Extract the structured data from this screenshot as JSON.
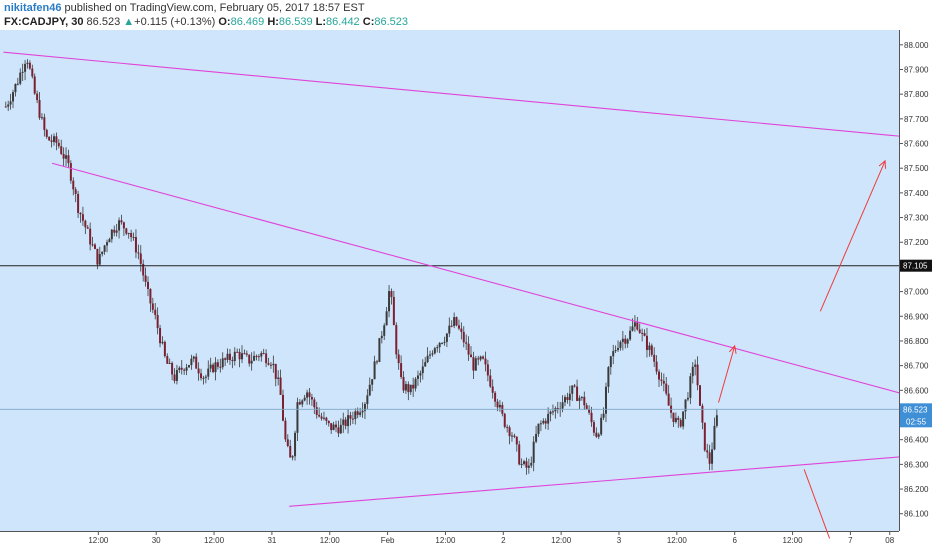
{
  "header": {
    "author": "nikitafen46",
    "publish_text": "published on TradingView.com, February 05, 2017 18:57 EST",
    "symbol": "FX:CADJPY, 30",
    "price": "86.523",
    "arrow": "▲",
    "change": "+0.115 (+0.13%)",
    "o_label": "O:",
    "o_value": "86.469",
    "h_label": "H:",
    "h_value": "86.539",
    "l_label": "L:",
    "l_value": "86.442",
    "c_label": "C:",
    "c_value": "86.523"
  },
  "colors": {
    "background": "#cfe5fb",
    "trendline": "#e044d8",
    "arrow": "#ef3b3b",
    "candle": "#3a3a3a",
    "down_candle": "#7a2030"
  },
  "chart_data": {
    "type": "candlestick",
    "symbol": "FX:CADJPY",
    "interval": "30",
    "y_ticks": [
      "86.100",
      "86.200",
      "86.300",
      "86.400",
      "86.500",
      "86.600",
      "86.700",
      "86.800",
      "86.900",
      "87.000",
      "87.100",
      "87.200",
      "87.300",
      "87.400",
      "87.500",
      "87.600",
      "87.700",
      "87.800",
      "87.900",
      "88.000"
    ],
    "x_ticks": [
      {
        "label": "12:00",
        "t": 0.5
      },
      {
        "label": "30",
        "t": 1.0
      },
      {
        "label": "12:00",
        "t": 1.5
      },
      {
        "label": "31",
        "t": 2.0
      },
      {
        "label": "12:00",
        "t": 2.5
      },
      {
        "label": "Feb",
        "t": 3.0
      },
      {
        "label": "12:00",
        "t": 3.5
      },
      {
        "label": "2",
        "t": 4.0
      },
      {
        "label": "12:00",
        "t": 4.5
      },
      {
        "label": "3",
        "t": 5.0
      },
      {
        "label": "12:00",
        "t": 5.5
      },
      {
        "label": "6",
        "t": 6.0
      },
      {
        "label": "12:00",
        "t": 6.5
      },
      {
        "label": "7",
        "t": 7.0
      },
      {
        "label": "08",
        "t": 7.34
      }
    ],
    "x_range": [
      -0.35,
      7.42
    ],
    "y_range": [
      86.03,
      88.06
    ],
    "price_line": {
      "value": 86.523,
      "label": "86.523"
    },
    "countdown": "02:55",
    "horizontal_level": {
      "value": 87.105,
      "label": "87.105"
    },
    "price_path": [
      [
        -0.3,
        87.75
      ],
      [
        -0.2,
        87.85
      ],
      [
        -0.12,
        87.96
      ],
      [
        -0.05,
        87.8
      ],
      [
        0.05,
        87.62
      ],
      [
        0.15,
        87.6
      ],
      [
        0.25,
        87.5
      ],
      [
        0.32,
        87.35
      ],
      [
        0.42,
        87.22
      ],
      [
        0.5,
        87.12
      ],
      [
        0.58,
        87.22
      ],
      [
        0.67,
        87.28
      ],
      [
        0.76,
        87.25
      ],
      [
        0.85,
        87.15
      ],
      [
        0.92,
        87.0
      ],
      [
        1.0,
        86.88
      ],
      [
        1.08,
        86.72
      ],
      [
        1.16,
        86.65
      ],
      [
        1.24,
        86.7
      ],
      [
        1.32,
        86.72
      ],
      [
        1.42,
        86.65
      ],
      [
        1.5,
        86.7
      ],
      [
        1.6,
        86.72
      ],
      [
        1.7,
        86.75
      ],
      [
        1.8,
        86.72
      ],
      [
        1.9,
        86.75
      ],
      [
        2.0,
        86.72
      ],
      [
        2.07,
        86.6
      ],
      [
        2.12,
        86.38
      ],
      [
        2.17,
        86.3
      ],
      [
        2.22,
        86.55
      ],
      [
        2.3,
        86.6
      ],
      [
        2.4,
        86.5
      ],
      [
        2.5,
        86.45
      ],
      [
        2.6,
        86.45
      ],
      [
        2.7,
        86.5
      ],
      [
        2.8,
        86.55
      ],
      [
        2.9,
        86.72
      ],
      [
        2.97,
        86.88
      ],
      [
        3.02,
        87.02
      ],
      [
        3.07,
        86.78
      ],
      [
        3.12,
        86.62
      ],
      [
        3.2,
        86.6
      ],
      [
        3.3,
        86.68
      ],
      [
        3.4,
        86.78
      ],
      [
        3.5,
        86.82
      ],
      [
        3.58,
        86.88
      ],
      [
        3.66,
        86.8
      ],
      [
        3.74,
        86.7
      ],
      [
        3.82,
        86.72
      ],
      [
        3.9,
        86.62
      ],
      [
        4.0,
        86.48
      ],
      [
        4.08,
        86.42
      ],
      [
        4.15,
        86.3
      ],
      [
        4.22,
        86.28
      ],
      [
        4.3,
        86.45
      ],
      [
        4.4,
        86.5
      ],
      [
        4.5,
        86.55
      ],
      [
        4.6,
        86.6
      ],
      [
        4.7,
        86.55
      ],
      [
        4.8,
        86.42
      ],
      [
        4.86,
        86.48
      ],
      [
        4.92,
        86.72
      ],
      [
        5.0,
        86.8
      ],
      [
        5.08,
        86.82
      ],
      [
        5.15,
        86.88
      ],
      [
        5.2,
        86.82
      ],
      [
        5.28,
        86.75
      ],
      [
        5.36,
        86.65
      ],
      [
        5.44,
        86.52
      ],
      [
        5.52,
        86.45
      ],
      [
        5.6,
        86.6
      ],
      [
        5.66,
        86.72
      ],
      [
        5.7,
        86.52
      ],
      [
        5.74,
        86.38
      ],
      [
        5.78,
        86.3
      ],
      [
        5.83,
        86.45
      ],
      [
        5.86,
        86.52
      ]
    ],
    "drawings": {
      "trendlines": [
        {
          "from": [
            -0.32,
            87.97
          ],
          "to": [
            7.42,
            87.63
          ]
        },
        {
          "from": [
            0.1,
            87.52
          ],
          "to": [
            7.42,
            86.59
          ]
        },
        {
          "from": [
            2.15,
            86.13
          ],
          "to": [
            7.42,
            86.33
          ]
        }
      ],
      "arrows": [
        {
          "from": [
            5.86,
            86.55
          ],
          "to": [
            6.0,
            86.78
          ],
          "head": true
        },
        {
          "from": [
            6.74,
            86.92
          ],
          "to": [
            7.3,
            87.53
          ],
          "head": true
        },
        {
          "from": [
            6.6,
            86.28
          ],
          "to": [
            6.82,
            86.0
          ],
          "head": false
        }
      ]
    }
  }
}
